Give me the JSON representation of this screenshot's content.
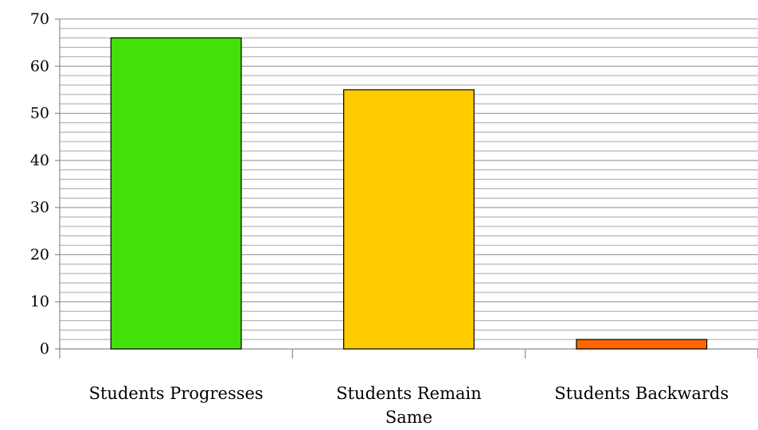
{
  "chart_data": {
    "type": "bar",
    "title": "",
    "xlabel": "",
    "ylabel": "",
    "categories": [
      "Students Progresses",
      "Students Remain Same",
      "Students Backwards"
    ],
    "category_lines": [
      [
        "Students Progresses"
      ],
      [
        "Students Remain",
        "Same"
      ],
      [
        "Students Backwards"
      ]
    ],
    "values": [
      66,
      55,
      2
    ],
    "colors": [
      "#44e00a",
      "#ffcc00",
      "#ff6600"
    ],
    "ylim": [
      0,
      70
    ],
    "major_ticks": [
      0,
      10,
      20,
      30,
      40,
      50,
      60,
      70
    ],
    "minor_tick_step": 2,
    "grid": true,
    "legend": "none"
  }
}
